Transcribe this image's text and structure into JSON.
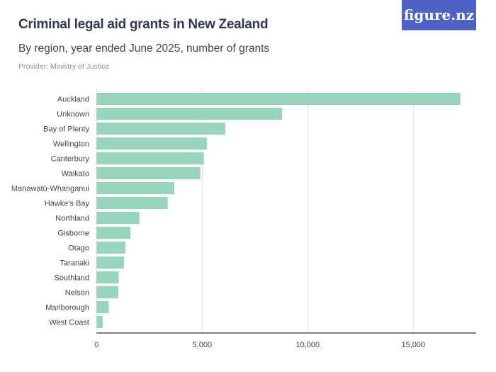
{
  "header": {
    "title": "Criminal legal aid grants in New Zealand",
    "subtitle": "By region, year ended June 2025, number of grants",
    "provider": "Provider: Ministry of Justice",
    "logo": "figure.nz"
  },
  "chart_data": {
    "type": "bar",
    "orientation": "horizontal",
    "categories": [
      "Auckland",
      "Unknown",
      "Bay of Plenty",
      "Wellington",
      "Canterbury",
      "Waikato",
      "Manawatū-Whanganui",
      "Hawke's Bay",
      "Northland",
      "Gisborne",
      "Otago",
      "Taranaki",
      "Southland",
      "Nelson",
      "Marlborough",
      "West Coast"
    ],
    "values": [
      17230,
      8790,
      6090,
      5220,
      5080,
      4910,
      3680,
      3370,
      2030,
      1610,
      1370,
      1300,
      1050,
      1030,
      580,
      290
    ],
    "xlim": [
      0,
      17500
    ],
    "xticks": [
      0,
      5000,
      10000,
      15000
    ],
    "xtick_labels": [
      "0",
      "5,000",
      "10,000",
      "15,000"
    ],
    "grid": true,
    "bar_color": "#97d6bb"
  }
}
